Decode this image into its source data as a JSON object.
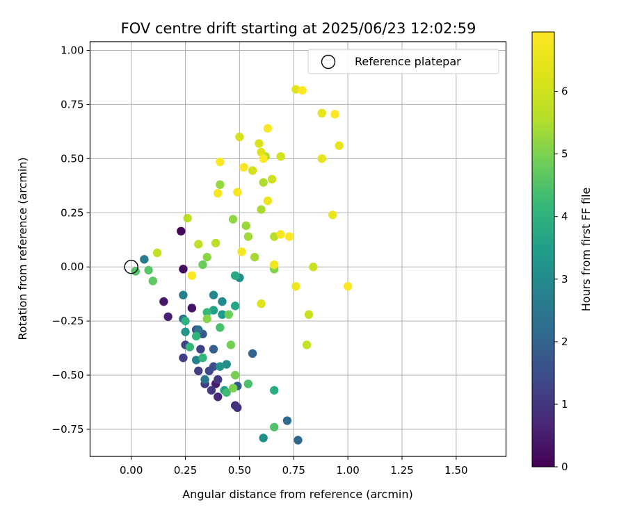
{
  "chart_data": {
    "type": "scatter",
    "title": "FOV centre drift starting at 2025/06/23 12:02:59",
    "xlabel": "Angular distance from reference (arcmin)",
    "ylabel": "Rotation from reference (arcmin)",
    "xlim": [
      -0.19,
      1.73
    ],
    "ylim": [
      -0.875,
      1.04
    ],
    "xticks": [
      0.0,
      0.25,
      0.5,
      0.75,
      1.0,
      1.25,
      1.5
    ],
    "xtick_labels": [
      "0.00",
      "0.25",
      "0.50",
      "0.75",
      "1.00",
      "1.25",
      "1.50"
    ],
    "yticks": [
      -0.75,
      -0.5,
      -0.25,
      0.0,
      0.25,
      0.5,
      0.75,
      1.0
    ],
    "ytick_labels": [
      "−0.75",
      "−0.50",
      "−0.25",
      "0.00",
      "0.25",
      "0.50",
      "0.75",
      "1.00"
    ],
    "grid": true,
    "legend": {
      "placement": "top-right",
      "entries": [
        "Reference platepar"
      ]
    },
    "reference_point": {
      "x": 0.0,
      "y": 0.0
    },
    "colorbar": {
      "label": "Hours from first FF file",
      "colormap": "viridis",
      "range": [
        0,
        6.95
      ],
      "ticks": [
        0,
        1,
        2,
        3,
        4,
        5,
        6
      ],
      "tick_labels": [
        "0",
        "1",
        "2",
        "3",
        "4",
        "5",
        "6"
      ]
    },
    "points": [
      {
        "x": 0.23,
        "y": 0.165,
        "t": 0.1
      },
      {
        "x": 0.24,
        "y": -0.01,
        "t": 0.2
      },
      {
        "x": 0.28,
        "y": -0.19,
        "t": 0.3
      },
      {
        "x": 0.15,
        "y": -0.16,
        "t": 0.4
      },
      {
        "x": 0.39,
        "y": -0.54,
        "t": 0.5
      },
      {
        "x": 0.17,
        "y": -0.23,
        "t": 0.6
      },
      {
        "x": 0.4,
        "y": -0.6,
        "t": 0.7
      },
      {
        "x": 0.48,
        "y": -0.64,
        "t": 0.8
      },
      {
        "x": 0.49,
        "y": -0.65,
        "t": 0.9
      },
      {
        "x": 0.4,
        "y": -0.52,
        "t": 1.0
      },
      {
        "x": 0.37,
        "y": -0.57,
        "t": 1.05
      },
      {
        "x": 0.34,
        "y": -0.54,
        "t": 1.1
      },
      {
        "x": 0.24,
        "y": -0.42,
        "t": 1.15
      },
      {
        "x": 0.31,
        "y": -0.48,
        "t": 1.2
      },
      {
        "x": 0.32,
        "y": -0.38,
        "t": 1.25
      },
      {
        "x": 0.25,
        "y": -0.36,
        "t": 1.3
      },
      {
        "x": 0.36,
        "y": -0.48,
        "t": 1.4
      },
      {
        "x": 0.38,
        "y": -0.46,
        "t": 1.5
      },
      {
        "x": 0.3,
        "y": -0.29,
        "t": 1.6
      },
      {
        "x": 0.33,
        "y": -0.31,
        "t": 1.7
      },
      {
        "x": 0.49,
        "y": -0.55,
        "t": 1.8
      },
      {
        "x": 0.38,
        "y": -0.38,
        "t": 1.9
      },
      {
        "x": 0.56,
        "y": -0.4,
        "t": 2.0
      },
      {
        "x": 0.77,
        "y": -0.8,
        "t": 2.1
      },
      {
        "x": 0.72,
        "y": -0.71,
        "t": 2.2
      },
      {
        "x": 0.24,
        "y": -0.24,
        "t": 2.3
      },
      {
        "x": 0.31,
        "y": -0.29,
        "t": 2.4
      },
      {
        "x": 0.34,
        "y": -0.52,
        "t": 2.5
      },
      {
        "x": 0.06,
        "y": 0.035,
        "t": 2.6
      },
      {
        "x": 0.24,
        "y": -0.13,
        "t": 2.7
      },
      {
        "x": 0.3,
        "y": -0.43,
        "t": 2.8
      },
      {
        "x": 0.38,
        "y": -0.13,
        "t": 2.9
      },
      {
        "x": 0.42,
        "y": -0.16,
        "t": 3.0
      },
      {
        "x": 0.44,
        "y": -0.45,
        "t": 3.05
      },
      {
        "x": 0.5,
        "y": -0.05,
        "t": 3.1
      },
      {
        "x": 0.61,
        "y": -0.79,
        "t": 3.15
      },
      {
        "x": 0.41,
        "y": -0.46,
        "t": 3.2
      },
      {
        "x": 0.25,
        "y": -0.3,
        "t": 3.3
      },
      {
        "x": 0.42,
        "y": -0.22,
        "t": 3.4
      },
      {
        "x": 0.43,
        "y": -0.57,
        "t": 3.5
      },
      {
        "x": 0.38,
        "y": -0.2,
        "t": 3.6
      },
      {
        "x": 0.48,
        "y": -0.18,
        "t": 3.7
      },
      {
        "x": 0.48,
        "y": -0.04,
        "t": 3.8
      },
      {
        "x": 0.66,
        "y": -0.57,
        "t": 3.9
      },
      {
        "x": 0.25,
        "y": -0.25,
        "t": 4.0
      },
      {
        "x": 0.3,
        "y": -0.32,
        "t": 4.05
      },
      {
        "x": 0.33,
        "y": -0.42,
        "t": 4.1
      },
      {
        "x": 0.27,
        "y": -0.37,
        "t": 4.15
      },
      {
        "x": 0.35,
        "y": -0.21,
        "t": 4.2
      },
      {
        "x": 0.44,
        "y": -0.58,
        "t": 4.3
      },
      {
        "x": 0.41,
        "y": -0.28,
        "t": 4.4
      },
      {
        "x": 0.54,
        "y": -0.54,
        "t": 4.45
      },
      {
        "x": 0.66,
        "y": -0.74,
        "t": 4.5
      },
      {
        "x": 0.02,
        "y": -0.02,
        "t": 4.55
      },
      {
        "x": 0.08,
        "y": -0.015,
        "t": 4.6
      },
      {
        "x": 0.1,
        "y": -0.065,
        "t": 4.7
      },
      {
        "x": 0.33,
        "y": 0.01,
        "t": 4.8
      },
      {
        "x": 0.45,
        "y": -0.22,
        "t": 4.85
      },
      {
        "x": 0.46,
        "y": -0.36,
        "t": 4.9
      },
      {
        "x": 0.48,
        "y": -0.5,
        "t": 4.95
      },
      {
        "x": 0.47,
        "y": -0.56,
        "t": 5.0
      },
      {
        "x": 0.66,
        "y": -0.01,
        "t": 5.05
      },
      {
        "x": 0.35,
        "y": -0.24,
        "t": 5.1
      },
      {
        "x": 0.35,
        "y": 0.045,
        "t": 5.15
      },
      {
        "x": 0.47,
        "y": 0.22,
        "t": 5.2
      },
      {
        "x": 0.41,
        "y": 0.38,
        "t": 5.25
      },
      {
        "x": 0.53,
        "y": 0.19,
        "t": 5.3
      },
      {
        "x": 0.54,
        "y": 0.14,
        "t": 5.35
      },
      {
        "x": 0.57,
        "y": 0.045,
        "t": 5.4
      },
      {
        "x": 0.6,
        "y": 0.265,
        "t": 5.45
      },
      {
        "x": 0.61,
        "y": 0.39,
        "t": 5.5
      },
      {
        "x": 0.62,
        "y": 0.51,
        "t": 5.55
      },
      {
        "x": 0.66,
        "y": 0.14,
        "t": 5.6
      },
      {
        "x": 0.26,
        "y": 0.225,
        "t": 5.65
      },
      {
        "x": 0.39,
        "y": 0.11,
        "t": 5.7
      },
      {
        "x": 0.31,
        "y": 0.105,
        "t": 5.75
      },
      {
        "x": 0.12,
        "y": 0.065,
        "t": 5.8
      },
      {
        "x": 0.81,
        "y": -0.36,
        "t": 5.85
      },
      {
        "x": 0.82,
        "y": -0.22,
        "t": 5.9
      },
      {
        "x": 0.84,
        "y": 0.0,
        "t": 5.95
      },
      {
        "x": 0.65,
        "y": 0.405,
        "t": 6.0
      },
      {
        "x": 0.69,
        "y": 0.51,
        "t": 6.05
      },
      {
        "x": 0.56,
        "y": 0.445,
        "t": 6.1
      },
      {
        "x": 0.5,
        "y": 0.6,
        "t": 6.15
      },
      {
        "x": 0.59,
        "y": 0.57,
        "t": 6.2
      },
      {
        "x": 0.6,
        "y": 0.53,
        "t": 6.25
      },
      {
        "x": 0.6,
        "y": -0.17,
        "t": 6.3
      },
      {
        "x": 0.76,
        "y": 0.82,
        "t": 6.35
      },
      {
        "x": 0.88,
        "y": 0.71,
        "t": 6.4
      },
      {
        "x": 0.88,
        "y": 0.5,
        "t": 6.45
      },
      {
        "x": 0.96,
        "y": 0.56,
        "t": 6.5
      },
      {
        "x": 0.93,
        "y": 0.24,
        "t": 6.55
      },
      {
        "x": 0.76,
        "y": -0.09,
        "t": 6.6
      },
      {
        "x": 0.63,
        "y": 0.305,
        "t": 6.65
      },
      {
        "x": 0.66,
        "y": 0.01,
        "t": 6.7
      },
      {
        "x": 0.51,
        "y": 0.07,
        "t": 6.75
      },
      {
        "x": 0.69,
        "y": 0.15,
        "t": 6.8
      },
      {
        "x": 0.49,
        "y": 0.345,
        "t": 6.85
      },
      {
        "x": 0.4,
        "y": 0.34,
        "t": 6.87
      },
      {
        "x": 0.52,
        "y": 0.46,
        "t": 6.89
      },
      {
        "x": 0.41,
        "y": 0.485,
        "t": 6.9
      },
      {
        "x": 0.63,
        "y": 0.64,
        "t": 6.91
      },
      {
        "x": 0.61,
        "y": 0.5,
        "t": 6.92
      },
      {
        "x": 0.73,
        "y": 0.14,
        "t": 6.93
      },
      {
        "x": 0.79,
        "y": 0.815,
        "t": 6.94
      },
      {
        "x": 0.94,
        "y": 0.705,
        "t": 6.95
      },
      {
        "x": 1.0,
        "y": -0.09,
        "t": 6.95
      },
      {
        "x": 0.28,
        "y": -0.04,
        "t": 6.95
      }
    ]
  }
}
